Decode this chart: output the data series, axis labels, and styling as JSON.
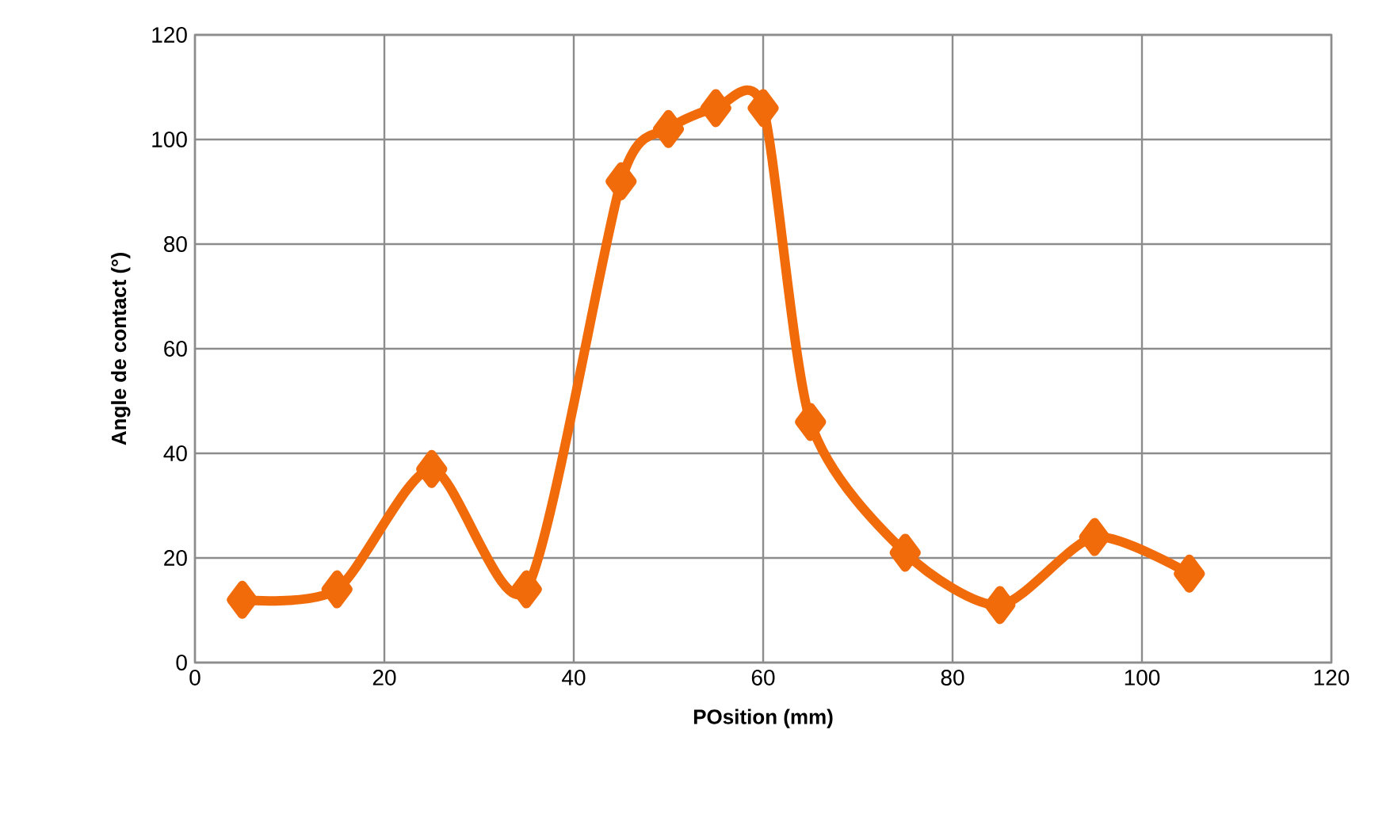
{
  "chart_data": {
    "type": "line",
    "xlabel": "POsition (mm)",
    "ylabel": "Angle de contact (°)",
    "x": [
      5,
      15,
      25,
      35,
      45,
      50,
      55,
      60,
      65,
      75,
      85,
      95,
      105
    ],
    "series": [
      {
        "color": "#f26b0a",
        "values": [
          12,
          14,
          37,
          14,
          92,
          102,
          106,
          106,
          46,
          21,
          11,
          24,
          17
        ]
      }
    ],
    "xlim": [
      0,
      120
    ],
    "ylim": [
      0,
      120
    ],
    "xticks": [
      0,
      20,
      40,
      60,
      80,
      100,
      120
    ],
    "yticks": [
      0,
      20,
      40,
      60,
      80,
      100,
      120
    ],
    "grid": true,
    "marker": "diamond",
    "line_style": "solid"
  }
}
